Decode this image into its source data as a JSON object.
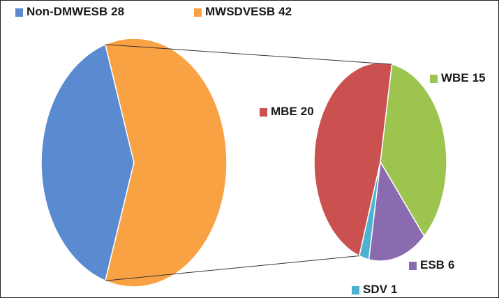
{
  "chart_data": {
    "type": "pie",
    "categories": [
      "Non-DMWESB",
      "MWSDVESB"
    ],
    "values": [
      28,
      42
    ],
    "colors": [
      "#5a8ad0",
      "#f8a244"
    ],
    "secondary": {
      "categories": [
        "WBE",
        "ESB",
        "SDV",
        "MBE"
      ],
      "values": [
        15,
        6,
        1,
        20
      ],
      "colors": [
        "#9cc44e",
        "#8a6bb0",
        "#4bb3cf",
        "#cb5150"
      ]
    }
  }
}
